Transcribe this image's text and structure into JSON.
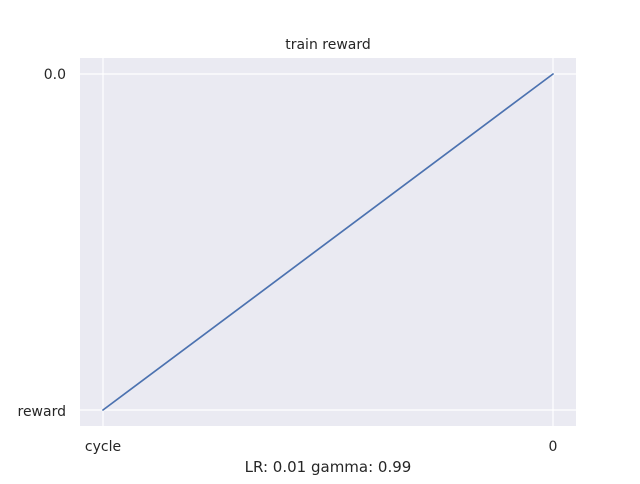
{
  "chart_data": {
    "type": "line",
    "title": "train reward",
    "xlabel": "LR: 0.01 gamma: 0.99",
    "ylabel": "",
    "x_tick_labels": [
      "cycle",
      "0"
    ],
    "y_tick_labels": [
      "reward",
      "0.0"
    ],
    "grid": true,
    "series": [
      {
        "x": [
          "cycle",
          "0"
        ],
        "values": [
          "reward",
          "0.0"
        ],
        "color": "#4c72b0"
      }
    ]
  },
  "colors": {
    "plot_background": "#eaeaf2",
    "grid": "#ffffff",
    "line": "#4c72b0",
    "text": "#262626"
  }
}
